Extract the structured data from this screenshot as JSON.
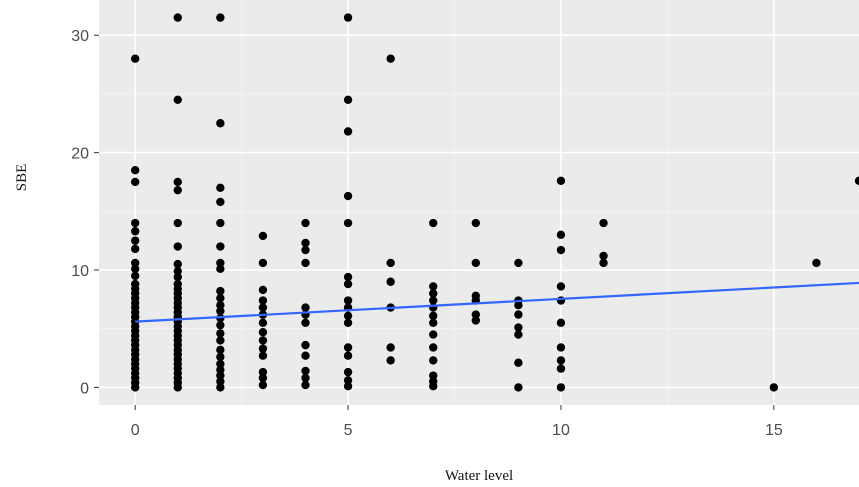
{
  "chart_data": {
    "type": "scatter",
    "title": "",
    "xlabel": "Water level",
    "ylabel": "SBE",
    "xlim": [
      -0.85,
      17
    ],
    "ylim": [
      -1.5,
      33
    ],
    "xticks": [
      0,
      5,
      10,
      15
    ],
    "yticks": [
      0,
      10,
      20,
      30
    ],
    "grid": true,
    "colors": {
      "panel": "#ebebeb",
      "grid_major": "#ffffff",
      "grid_minor": "#f5f5f5",
      "points": "#000000",
      "trend": "#3366ff"
    },
    "trend_line": {
      "x": [
        0,
        17
      ],
      "y": [
        5.6,
        8.9
      ]
    },
    "points": [
      {
        "x": 0,
        "y": 0
      },
      {
        "x": 0,
        "y": 0.4
      },
      {
        "x": 0,
        "y": 0.8
      },
      {
        "x": 0,
        "y": 1.2
      },
      {
        "x": 0,
        "y": 1.6
      },
      {
        "x": 0,
        "y": 2.0
      },
      {
        "x": 0,
        "y": 2.4
      },
      {
        "x": 0,
        "y": 2.8
      },
      {
        "x": 0,
        "y": 3.2
      },
      {
        "x": 0,
        "y": 3.6
      },
      {
        "x": 0,
        "y": 4.0
      },
      {
        "x": 0,
        "y": 4.4
      },
      {
        "x": 0,
        "y": 4.8
      },
      {
        "x": 0,
        "y": 5.2
      },
      {
        "x": 0,
        "y": 5.6
      },
      {
        "x": 0,
        "y": 6.0
      },
      {
        "x": 0,
        "y": 6.4
      },
      {
        "x": 0,
        "y": 6.8
      },
      {
        "x": 0,
        "y": 7.2
      },
      {
        "x": 0,
        "y": 7.6
      },
      {
        "x": 0,
        "y": 8.0
      },
      {
        "x": 0,
        "y": 8.4
      },
      {
        "x": 0,
        "y": 8.8
      },
      {
        "x": 0,
        "y": 9.5
      },
      {
        "x": 0,
        "y": 10.1
      },
      {
        "x": 0,
        "y": 10.6
      },
      {
        "x": 0,
        "y": 11.8
      },
      {
        "x": 0,
        "y": 12.5
      },
      {
        "x": 0,
        "y": 13.3
      },
      {
        "x": 0,
        "y": 14.0
      },
      {
        "x": 0,
        "y": 17.5
      },
      {
        "x": 0,
        "y": 18.5
      },
      {
        "x": 0,
        "y": 28.0
      },
      {
        "x": 1,
        "y": 0
      },
      {
        "x": 1,
        "y": 0.4
      },
      {
        "x": 1,
        "y": 0.8
      },
      {
        "x": 1,
        "y": 1.2
      },
      {
        "x": 1,
        "y": 1.6
      },
      {
        "x": 1,
        "y": 2.0
      },
      {
        "x": 1,
        "y": 2.4
      },
      {
        "x": 1,
        "y": 2.8
      },
      {
        "x": 1,
        "y": 3.2
      },
      {
        "x": 1,
        "y": 3.6
      },
      {
        "x": 1,
        "y": 4.0
      },
      {
        "x": 1,
        "y": 4.4
      },
      {
        "x": 1,
        "y": 4.8
      },
      {
        "x": 1,
        "y": 5.2
      },
      {
        "x": 1,
        "y": 5.6
      },
      {
        "x": 1,
        "y": 6.0
      },
      {
        "x": 1,
        "y": 6.4
      },
      {
        "x": 1,
        "y": 6.8
      },
      {
        "x": 1,
        "y": 7.2
      },
      {
        "x": 1,
        "y": 7.6
      },
      {
        "x": 1,
        "y": 8.0
      },
      {
        "x": 1,
        "y": 8.4
      },
      {
        "x": 1,
        "y": 8.8
      },
      {
        "x": 1,
        "y": 9.4
      },
      {
        "x": 1,
        "y": 9.9
      },
      {
        "x": 1,
        "y": 10.5
      },
      {
        "x": 1,
        "y": 12.0
      },
      {
        "x": 1,
        "y": 14.0
      },
      {
        "x": 1,
        "y": 16.8
      },
      {
        "x": 1,
        "y": 17.5
      },
      {
        "x": 1,
        "y": 24.5
      },
      {
        "x": 1,
        "y": 31.5
      },
      {
        "x": 2,
        "y": 0
      },
      {
        "x": 2,
        "y": 0.5
      },
      {
        "x": 2,
        "y": 1.0
      },
      {
        "x": 2,
        "y": 1.5
      },
      {
        "x": 2,
        "y": 2.0
      },
      {
        "x": 2,
        "y": 2.6
      },
      {
        "x": 2,
        "y": 3.2
      },
      {
        "x": 2,
        "y": 4.0
      },
      {
        "x": 2,
        "y": 4.6
      },
      {
        "x": 2,
        "y": 5.3
      },
      {
        "x": 2,
        "y": 5.9
      },
      {
        "x": 2,
        "y": 6.5
      },
      {
        "x": 2,
        "y": 7.0
      },
      {
        "x": 2,
        "y": 7.6
      },
      {
        "x": 2,
        "y": 8.2
      },
      {
        "x": 2,
        "y": 10.1
      },
      {
        "x": 2,
        "y": 10.6
      },
      {
        "x": 2,
        "y": 12.0
      },
      {
        "x": 2,
        "y": 14.0
      },
      {
        "x": 2,
        "y": 15.8
      },
      {
        "x": 2,
        "y": 17.0
      },
      {
        "x": 2,
        "y": 22.5
      },
      {
        "x": 2,
        "y": 31.5
      },
      {
        "x": 3,
        "y": 0.2
      },
      {
        "x": 3,
        "y": 0.8
      },
      {
        "x": 3,
        "y": 1.3
      },
      {
        "x": 3,
        "y": 2.7
      },
      {
        "x": 3,
        "y": 3.3
      },
      {
        "x": 3,
        "y": 4.0
      },
      {
        "x": 3,
        "y": 4.7
      },
      {
        "x": 3,
        "y": 5.5
      },
      {
        "x": 3,
        "y": 6.2
      },
      {
        "x": 3,
        "y": 6.8
      },
      {
        "x": 3,
        "y": 7.4
      },
      {
        "x": 3,
        "y": 8.3
      },
      {
        "x": 3,
        "y": 10.6
      },
      {
        "x": 3,
        "y": 12.9
      },
      {
        "x": 4,
        "y": 0.2
      },
      {
        "x": 4,
        "y": 0.8
      },
      {
        "x": 4,
        "y": 1.4
      },
      {
        "x": 4,
        "y": 2.7
      },
      {
        "x": 4,
        "y": 3.6
      },
      {
        "x": 4,
        "y": 5.5
      },
      {
        "x": 4,
        "y": 6.2
      },
      {
        "x": 4,
        "y": 6.8
      },
      {
        "x": 4,
        "y": 10.6
      },
      {
        "x": 4,
        "y": 11.7
      },
      {
        "x": 4,
        "y": 12.3
      },
      {
        "x": 4,
        "y": 14.0
      },
      {
        "x": 5,
        "y": 0.1
      },
      {
        "x": 5,
        "y": 0.6
      },
      {
        "x": 5,
        "y": 1.3
      },
      {
        "x": 5,
        "y": 2.7
      },
      {
        "x": 5,
        "y": 3.4
      },
      {
        "x": 5,
        "y": 5.5
      },
      {
        "x": 5,
        "y": 6.1
      },
      {
        "x": 5,
        "y": 6.8
      },
      {
        "x": 5,
        "y": 7.4
      },
      {
        "x": 5,
        "y": 8.8
      },
      {
        "x": 5,
        "y": 9.4
      },
      {
        "x": 5,
        "y": 14.0
      },
      {
        "x": 5,
        "y": 16.3
      },
      {
        "x": 5,
        "y": 21.8
      },
      {
        "x": 5,
        "y": 24.5
      },
      {
        "x": 5,
        "y": 31.5
      },
      {
        "x": 6,
        "y": 2.3
      },
      {
        "x": 6,
        "y": 3.4
      },
      {
        "x": 6,
        "y": 6.8
      },
      {
        "x": 6,
        "y": 9.0
      },
      {
        "x": 6,
        "y": 10.6
      },
      {
        "x": 6,
        "y": 28.0
      },
      {
        "x": 7,
        "y": 0.1
      },
      {
        "x": 7,
        "y": 0.5
      },
      {
        "x": 7,
        "y": 1.0
      },
      {
        "x": 7,
        "y": 2.3
      },
      {
        "x": 7,
        "y": 3.4
      },
      {
        "x": 7,
        "y": 4.5
      },
      {
        "x": 7,
        "y": 5.5
      },
      {
        "x": 7,
        "y": 6.1
      },
      {
        "x": 7,
        "y": 6.8
      },
      {
        "x": 7,
        "y": 7.4
      },
      {
        "x": 7,
        "y": 8.0
      },
      {
        "x": 7,
        "y": 8.6
      },
      {
        "x": 7,
        "y": 14.0
      },
      {
        "x": 8,
        "y": 5.7
      },
      {
        "x": 8,
        "y": 6.2
      },
      {
        "x": 8,
        "y": 7.4
      },
      {
        "x": 8,
        "y": 7.8
      },
      {
        "x": 8,
        "y": 10.6
      },
      {
        "x": 8,
        "y": 14.0
      },
      {
        "x": 9,
        "y": 0
      },
      {
        "x": 9,
        "y": 2.1
      },
      {
        "x": 9,
        "y": 4.5
      },
      {
        "x": 9,
        "y": 5.1
      },
      {
        "x": 9,
        "y": 6.2
      },
      {
        "x": 9,
        "y": 7.0
      },
      {
        "x": 9,
        "y": 7.4
      },
      {
        "x": 9,
        "y": 10.6
      },
      {
        "x": 10,
        "y": 0
      },
      {
        "x": 10,
        "y": 1.6
      },
      {
        "x": 10,
        "y": 2.3
      },
      {
        "x": 10,
        "y": 3.4
      },
      {
        "x": 10,
        "y": 5.5
      },
      {
        "x": 10,
        "y": 7.4
      },
      {
        "x": 10,
        "y": 8.6
      },
      {
        "x": 10,
        "y": 11.7
      },
      {
        "x": 10,
        "y": 13.0
      },
      {
        "x": 10,
        "y": 17.6
      },
      {
        "x": 11,
        "y": 10.6
      },
      {
        "x": 11,
        "y": 11.2
      },
      {
        "x": 11,
        "y": 14.0
      },
      {
        "x": 15,
        "y": 0
      },
      {
        "x": 16,
        "y": 10.6
      },
      {
        "x": 17,
        "y": 17.6
      }
    ]
  }
}
